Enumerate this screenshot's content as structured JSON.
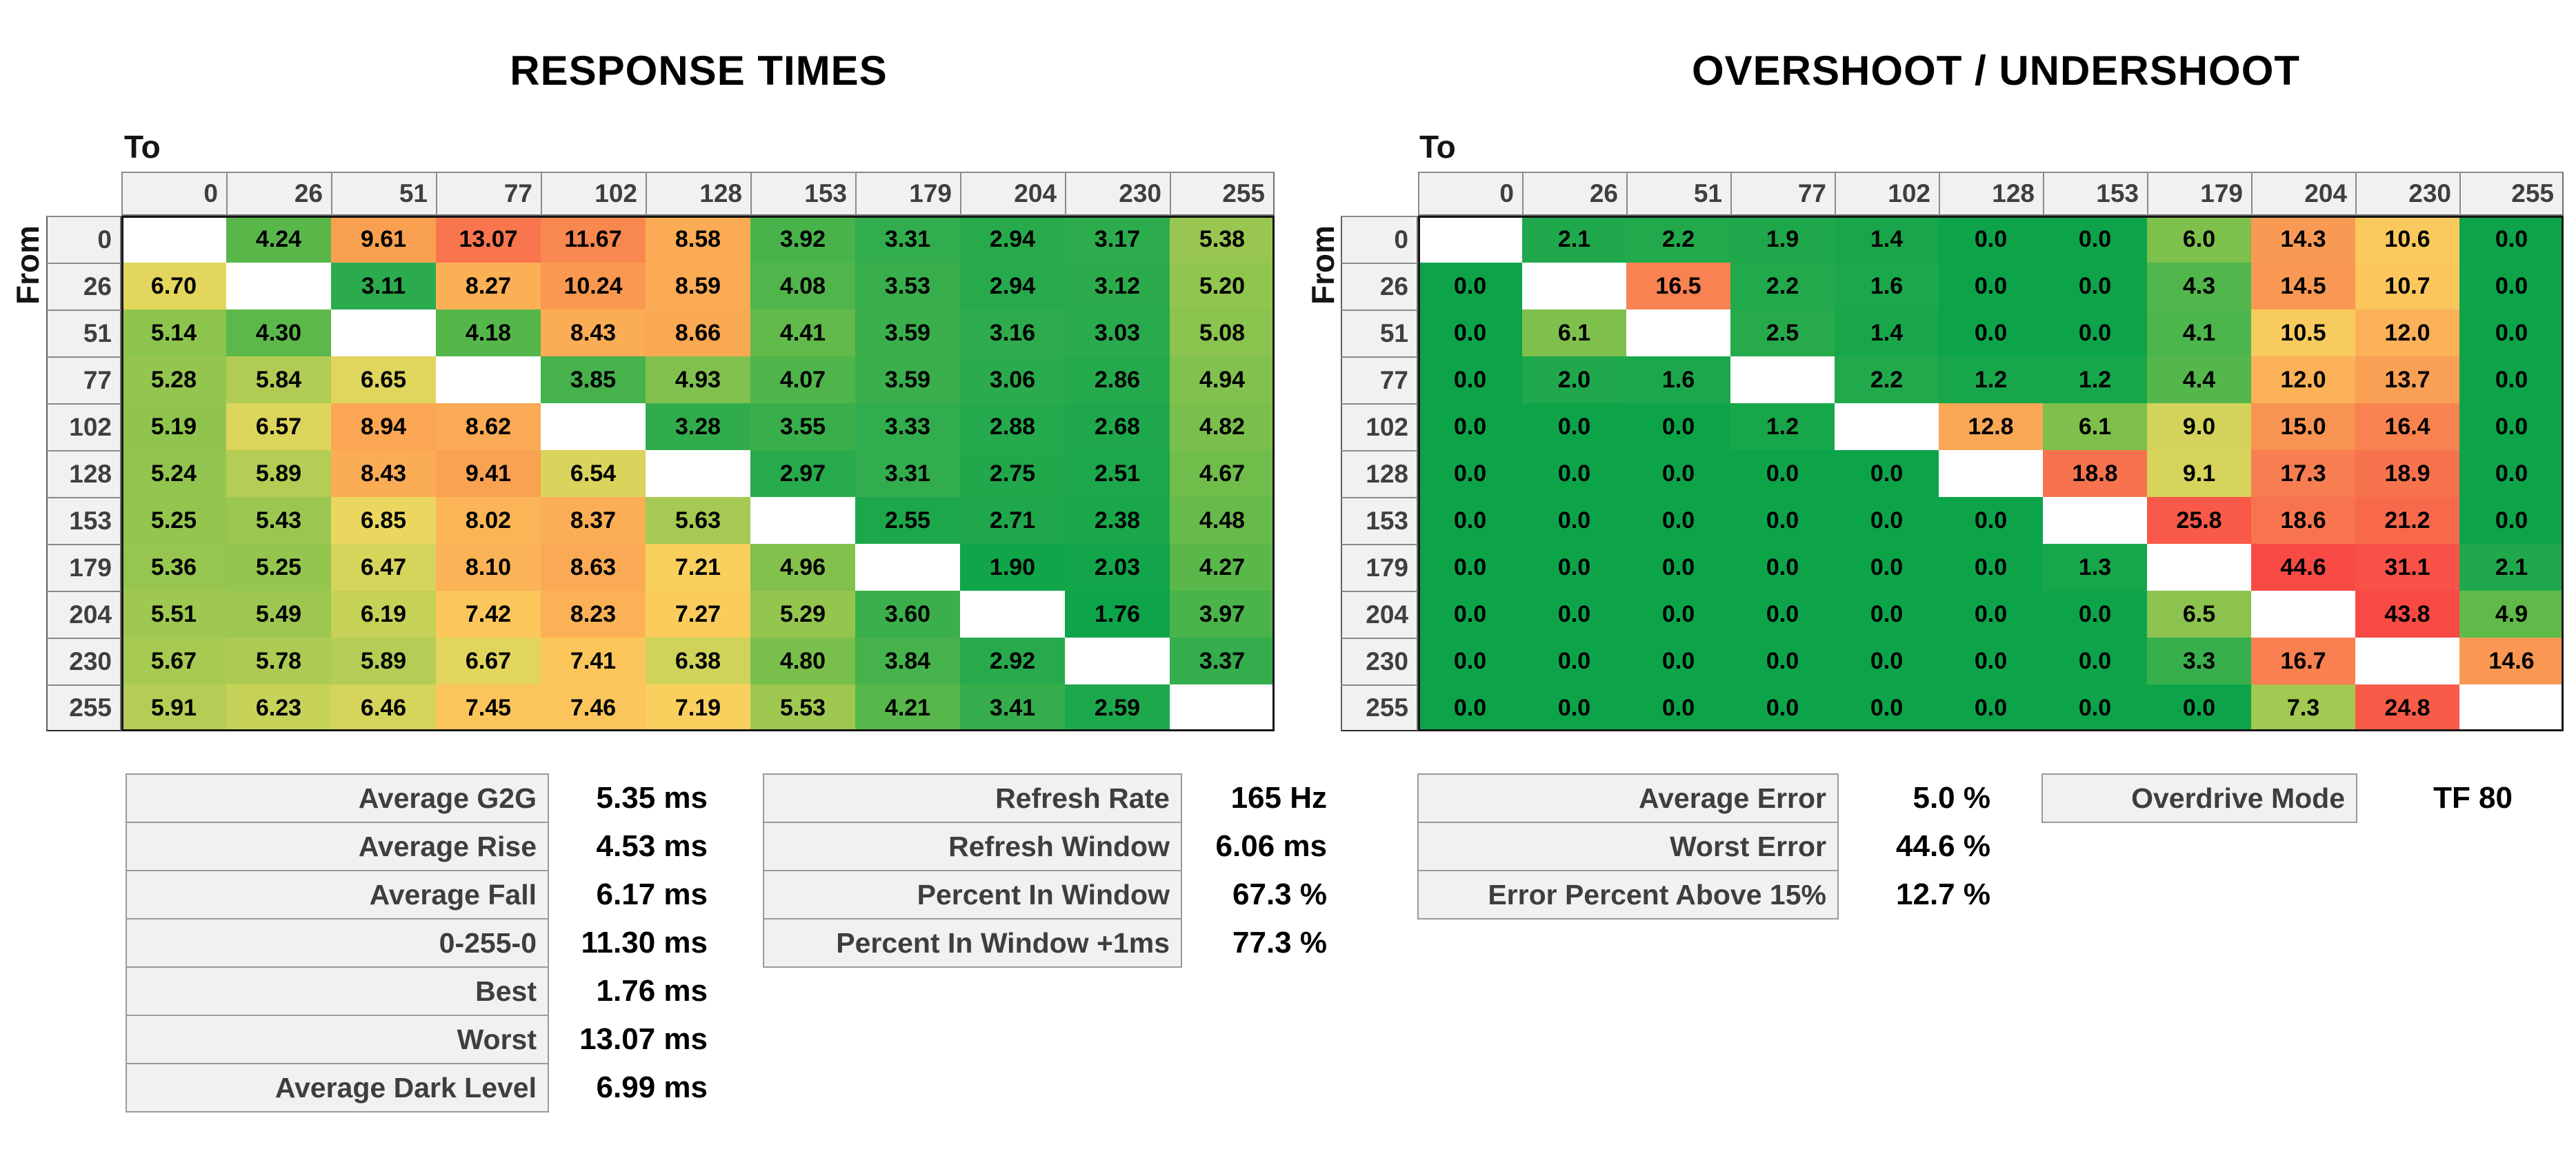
{
  "titles": {
    "response": "RESPONSE TIMES",
    "overshoot": "OVERSHOOT / UNDERSHOOT"
  },
  "axes": {
    "to": "To",
    "from": "From"
  },
  "gray_levels": [
    "0",
    "26",
    "51",
    "77",
    "102",
    "128",
    "153",
    "179",
    "204",
    "230",
    "255"
  ],
  "chart_data": [
    {
      "type": "heatmap",
      "title": "RESPONSE TIMES",
      "xlabel": "To",
      "ylabel": "From",
      "unit": "ms",
      "decimals": 2,
      "x_ticks": [
        "0",
        "26",
        "51",
        "77",
        "102",
        "128",
        "153",
        "179",
        "204",
        "230",
        "255"
      ],
      "y_ticks": [
        "0",
        "26",
        "51",
        "77",
        "102",
        "128",
        "153",
        "179",
        "204",
        "230",
        "255"
      ],
      "values": [
        [
          null,
          4.24,
          9.61,
          13.07,
          11.67,
          8.58,
          3.92,
          3.31,
          2.94,
          3.17,
          5.38
        ],
        [
          6.7,
          null,
          3.11,
          8.27,
          10.24,
          8.59,
          4.08,
          3.53,
          2.94,
          3.12,
          5.2
        ],
        [
          5.14,
          4.3,
          null,
          4.18,
          8.43,
          8.66,
          4.41,
          3.59,
          3.16,
          3.03,
          5.08
        ],
        [
          5.28,
          5.84,
          6.65,
          null,
          3.85,
          4.93,
          4.07,
          3.59,
          3.06,
          2.86,
          4.94
        ],
        [
          5.19,
          6.57,
          8.94,
          8.62,
          null,
          3.28,
          3.55,
          3.33,
          2.88,
          2.68,
          4.82
        ],
        [
          5.24,
          5.89,
          8.43,
          9.41,
          6.54,
          null,
          2.97,
          3.31,
          2.75,
          2.51,
          4.67
        ],
        [
          5.25,
          5.43,
          6.85,
          8.02,
          8.37,
          5.63,
          null,
          2.55,
          2.71,
          2.38,
          4.48
        ],
        [
          5.36,
          5.25,
          6.47,
          8.1,
          8.63,
          7.21,
          4.96,
          null,
          1.9,
          2.03,
          4.27
        ],
        [
          5.51,
          5.49,
          6.19,
          7.42,
          8.23,
          7.27,
          5.29,
          3.6,
          null,
          1.76,
          3.97
        ],
        [
          5.67,
          5.78,
          5.89,
          6.67,
          7.41,
          6.38,
          4.8,
          3.84,
          2.92,
          null,
          3.37
        ],
        [
          5.91,
          6.23,
          6.46,
          7.45,
          7.46,
          7.19,
          5.53,
          4.21,
          3.41,
          2.59,
          null
        ]
      ],
      "color_stops": [
        [
          1.7,
          "#0da449"
        ],
        [
          2.2,
          "#16a64a"
        ],
        [
          2.7,
          "#1fa84b"
        ],
        [
          3.1,
          "#2bab4d"
        ],
        [
          3.6,
          "#3baf4c"
        ],
        [
          4.0,
          "#4bb44b"
        ],
        [
          4.35,
          "#5fb94a"
        ],
        [
          4.8,
          "#79bf4c"
        ],
        [
          5.15,
          "#8ec44e"
        ],
        [
          5.55,
          "#a0c851"
        ],
        [
          5.95,
          "#b7ce55"
        ],
        [
          6.35,
          "#ced359"
        ],
        [
          6.75,
          "#e6d65e"
        ],
        [
          7.05,
          "#f5d860"
        ],
        [
          7.3,
          "#fcca5c"
        ],
        [
          7.7,
          "#fbbd59"
        ],
        [
          8.2,
          "#fbb156"
        ],
        [
          8.75,
          "#faa853"
        ],
        [
          9.6,
          "#f9a050"
        ],
        [
          10.5,
          "#f9964f"
        ],
        [
          11.8,
          "#f8864f"
        ],
        [
          13.1,
          "#f8754e"
        ]
      ]
    },
    {
      "type": "heatmap",
      "title": "OVERSHOOT / UNDERSHOOT",
      "xlabel": "To",
      "ylabel": "From",
      "unit": "%",
      "decimals": 1,
      "x_ticks": [
        "0",
        "26",
        "51",
        "77",
        "102",
        "128",
        "153",
        "179",
        "204",
        "230",
        "255"
      ],
      "y_ticks": [
        "0",
        "26",
        "51",
        "77",
        "102",
        "128",
        "153",
        "179",
        "204",
        "230",
        "255"
      ],
      "values": [
        [
          null,
          2.1,
          2.2,
          1.9,
          1.4,
          0.0,
          0.0,
          6.0,
          14.3,
          10.6,
          0.0
        ],
        [
          0.0,
          null,
          16.5,
          2.2,
          1.6,
          0.0,
          0.0,
          4.3,
          14.5,
          10.7,
          0.0
        ],
        [
          0.0,
          6.1,
          null,
          2.5,
          1.4,
          0.0,
          0.0,
          4.1,
          10.5,
          12.0,
          0.0
        ],
        [
          0.0,
          2.0,
          1.6,
          null,
          2.2,
          1.2,
          1.2,
          4.4,
          12.0,
          13.7,
          0.0
        ],
        [
          0.0,
          0.0,
          0.0,
          1.2,
          null,
          12.8,
          6.1,
          9.0,
          15.0,
          16.4,
          0.0
        ],
        [
          0.0,
          0.0,
          0.0,
          0.0,
          0.0,
          null,
          18.8,
          9.1,
          17.3,
          18.9,
          0.0
        ],
        [
          0.0,
          0.0,
          0.0,
          0.0,
          0.0,
          0.0,
          null,
          25.8,
          18.6,
          21.2,
          0.0
        ],
        [
          0.0,
          0.0,
          0.0,
          0.0,
          0.0,
          0.0,
          1.3,
          null,
          44.6,
          31.1,
          2.1
        ],
        [
          0.0,
          0.0,
          0.0,
          0.0,
          0.0,
          0.0,
          0.0,
          6.5,
          null,
          43.8,
          4.9
        ],
        [
          0.0,
          0.0,
          0.0,
          0.0,
          0.0,
          0.0,
          0.0,
          3.3,
          16.7,
          null,
          14.6
        ],
        [
          0.0,
          0.0,
          0.0,
          0.0,
          0.0,
          0.0,
          0.0,
          0.0,
          7.3,
          24.8,
          null
        ]
      ],
      "color_stops": [
        [
          0,
          "#0da449"
        ],
        [
          1.3,
          "#18a64a"
        ],
        [
          2.2,
          "#21a94c"
        ],
        [
          3.0,
          "#30ac4d"
        ],
        [
          3.8,
          "#44b34c"
        ],
        [
          4.6,
          "#59b84a"
        ],
        [
          5.5,
          "#6fbd4b"
        ],
        [
          6.2,
          "#82c14d"
        ],
        [
          6.9,
          "#97c650"
        ],
        [
          7.6,
          "#aacb53"
        ],
        [
          8.5,
          "#c4d158"
        ],
        [
          9.2,
          "#d9d45c"
        ],
        [
          9.9,
          "#f0d75f"
        ],
        [
          10.7,
          "#fbc75d"
        ],
        [
          11.6,
          "#fab559"
        ],
        [
          12.9,
          "#faa756"
        ],
        [
          14.0,
          "#f99d54"
        ],
        [
          15.2,
          "#f89152"
        ],
        [
          16.6,
          "#f88151"
        ],
        [
          18.0,
          "#f87850"
        ],
        [
          19.5,
          "#f76f4d"
        ],
        [
          21.5,
          "#f8674b"
        ],
        [
          25.0,
          "#f85a48"
        ],
        [
          32.0,
          "#f85148"
        ],
        [
          44.6,
          "#f84a45"
        ]
      ]
    }
  ],
  "panels": [
    {
      "name": "response-stats",
      "rows": [
        {
          "label": "Average G2G",
          "value": "5.35 ms"
        },
        {
          "label": "Average Rise",
          "value": "4.53 ms"
        },
        {
          "label": "Average Fall",
          "value": "6.17 ms"
        },
        {
          "label": "0-255-0",
          "value": "11.30 ms"
        },
        {
          "label": "Best",
          "value": "1.76 ms"
        },
        {
          "label": "Worst",
          "value": "13.07 ms"
        },
        {
          "label": "Average Dark Level",
          "value": "6.99 ms"
        }
      ]
    },
    {
      "name": "refresh-stats",
      "rows": [
        {
          "label": "Refresh Rate",
          "value": "165 Hz"
        },
        {
          "label": "Refresh Window",
          "value": "6.06 ms"
        },
        {
          "label": "Percent In Window",
          "value": "67.3 %"
        },
        {
          "label": "Percent In Window +1ms",
          "value": "77.3 %"
        }
      ]
    },
    {
      "name": "error-stats",
      "rows": [
        {
          "label": "Average Error",
          "value": "5.0 %"
        },
        {
          "label": "Worst Error",
          "value": "44.6 %"
        },
        {
          "label": "Error Percent Above 15%",
          "value": "12.7 %"
        }
      ]
    },
    {
      "name": "overdrive",
      "rows": [
        {
          "label": "Overdrive Mode",
          "value": "TF 80"
        }
      ]
    }
  ]
}
